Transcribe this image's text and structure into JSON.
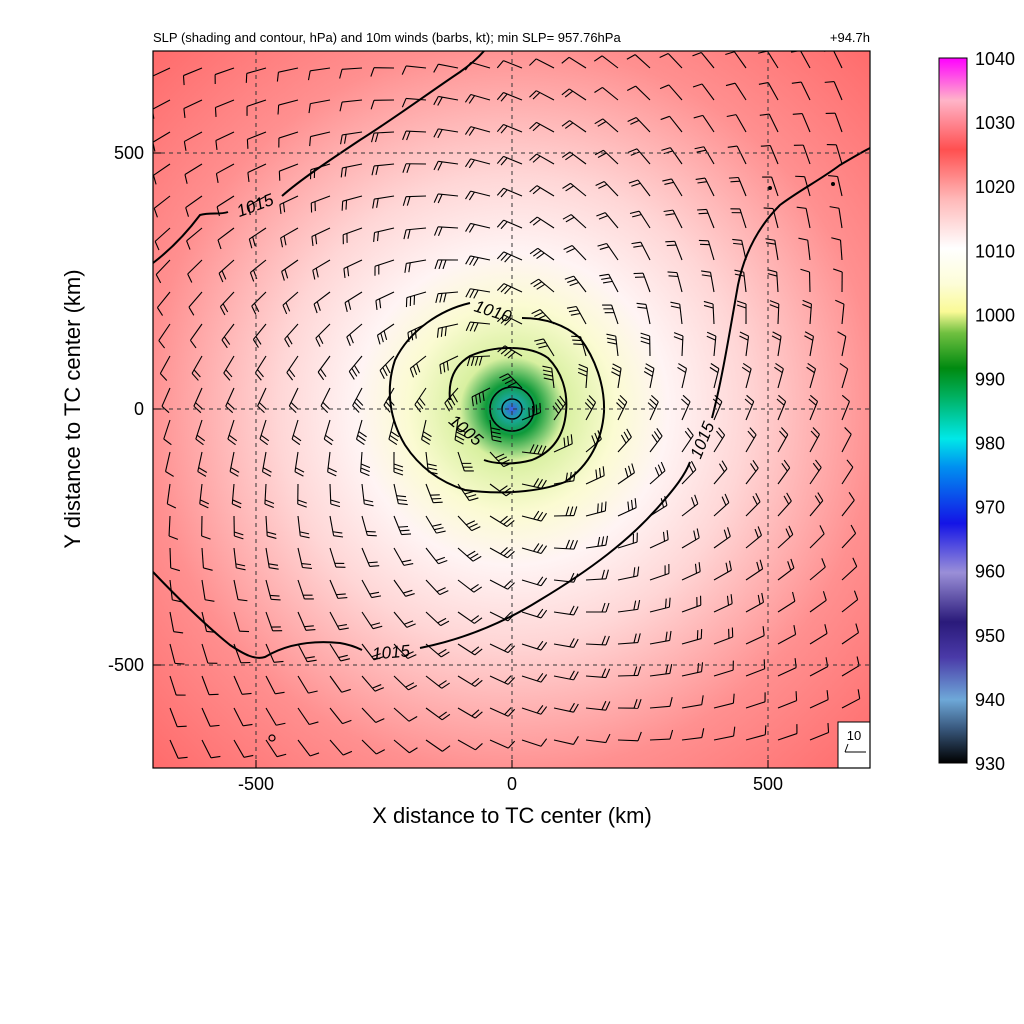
{
  "chart_data": {
    "type": "heatmap",
    "title": "SLP (shading and contour, hPa) and 10m winds (barbs, kt); min SLP= 957.76hPa",
    "time_label": "+94.7h",
    "xlabel": "X distance to TC center (km)",
    "ylabel": "Y distance to TC center (km)",
    "xlim": [
      -700,
      700
    ],
    "ylim": [
      -700,
      700
    ],
    "x_ticks": [
      -500,
      0,
      500
    ],
    "y_ticks": [
      -500,
      0,
      500
    ],
    "x_tick_labels": [
      "-500",
      "0",
      "500"
    ],
    "y_tick_labels": [
      "-500",
      "0",
      "500"
    ],
    "grid": true,
    "min_slp_hpa": 957.76,
    "center": {
      "x": 0,
      "y": 0
    },
    "colorbar": {
      "ticks": [
        930,
        940,
        950,
        960,
        970,
        980,
        990,
        1000,
        1010,
        1020,
        1030,
        1040
      ],
      "tick_labels": [
        "930",
        "940",
        "950",
        "960",
        "970",
        "980",
        "990",
        "1000",
        "1010",
        "1020",
        "1030",
        "1040"
      ],
      "range": [
        930,
        1040
      ],
      "colors": [
        "#000000",
        "#6ea8d8",
        "#3a1e8a",
        "#9a8fd8",
        "#1414e6",
        "#00e0e0",
        "#008a10",
        "#fafa96",
        "#ffffff",
        "#ff5050",
        "#ffb4c8",
        "#ff00ff"
      ]
    },
    "contours": [
      {
        "level": 1005,
        "label": "1005"
      },
      {
        "level": 1010,
        "label": "1010"
      },
      {
        "level": 1015,
        "label": "1015"
      }
    ],
    "reference_barb": {
      "speed_kt": 10,
      "label": "10"
    },
    "colors": {
      "far_field": "#ff6a6a",
      "ring_1010": "#fff4f4",
      "ring_1005": "#fafac8",
      "eyewall": "#12a050",
      "eye": "#3060f0"
    }
  }
}
